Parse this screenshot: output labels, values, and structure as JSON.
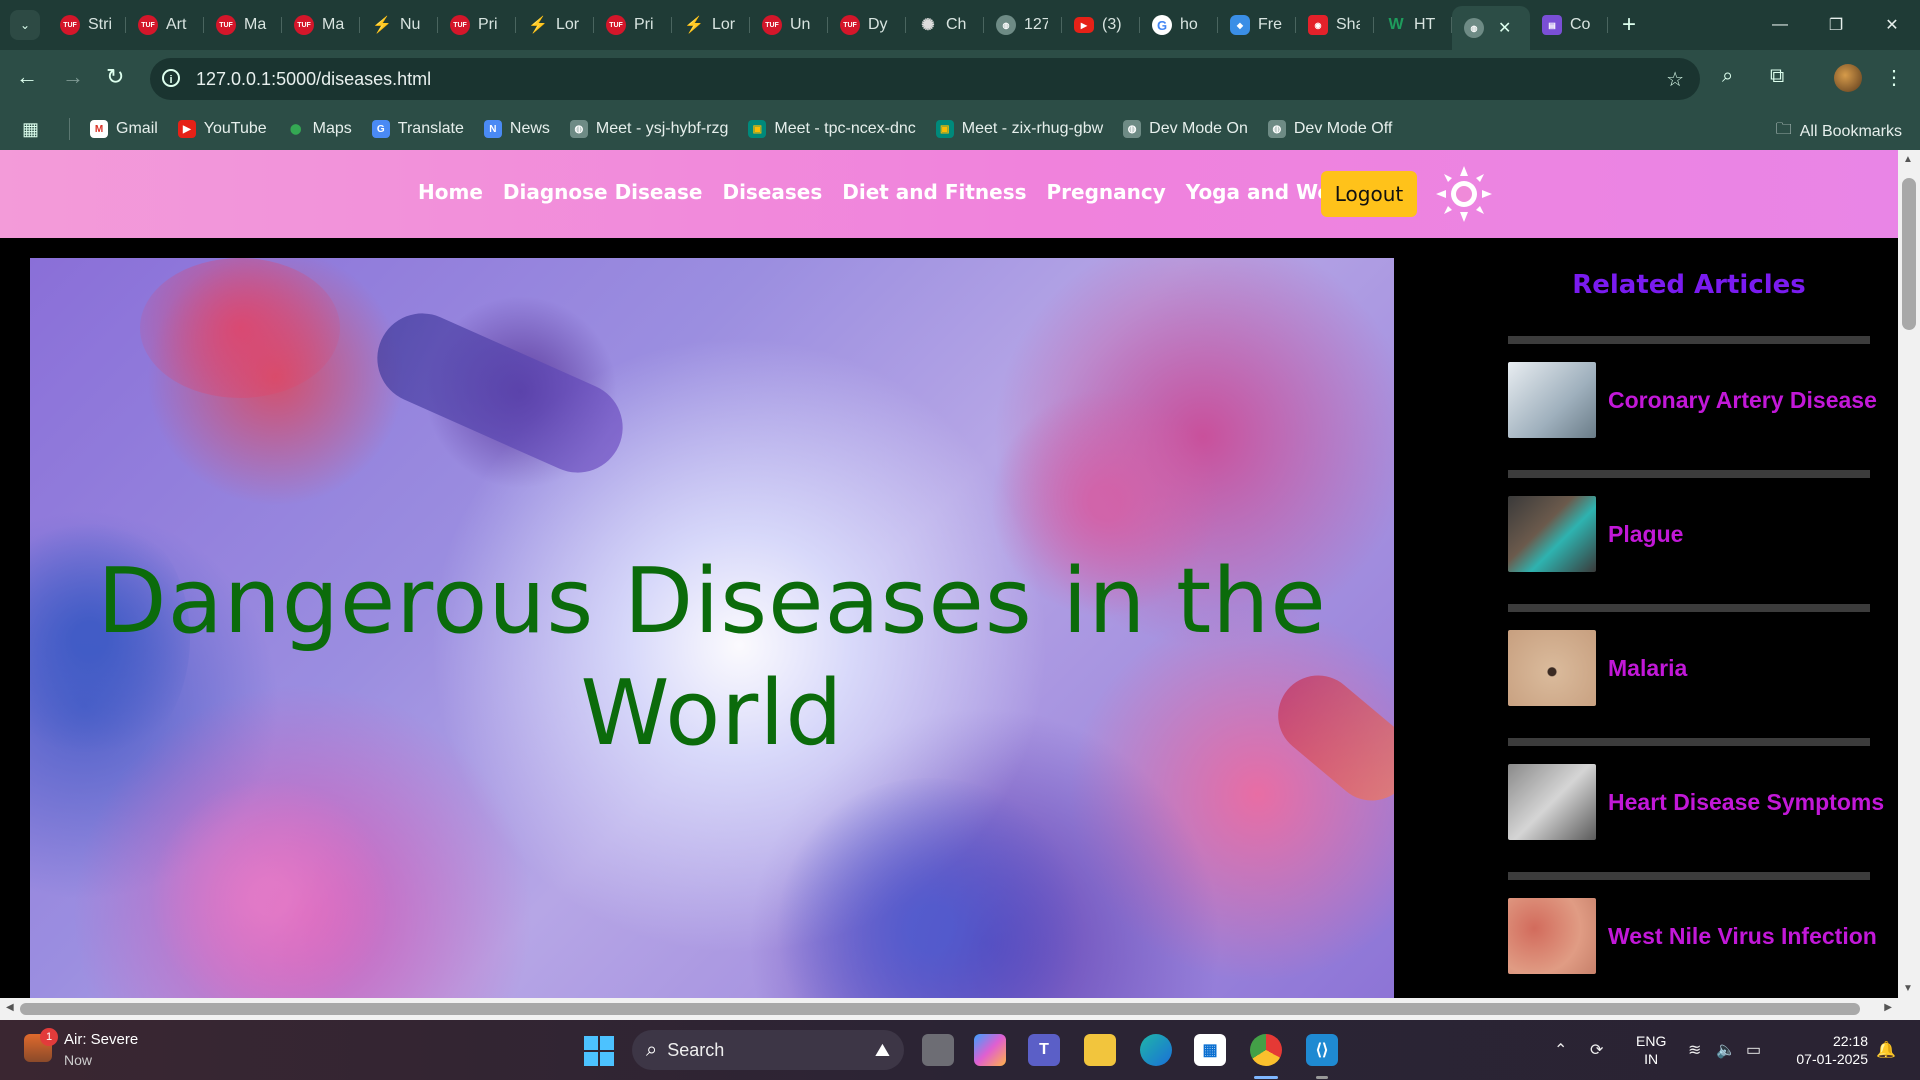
{
  "browser": {
    "tabs": [
      {
        "icon": "tuf-icon",
        "label": "Stri"
      },
      {
        "icon": "tuf-icon",
        "label": "Art"
      },
      {
        "icon": "tuf-icon",
        "label": "Ma"
      },
      {
        "icon": "tuf-icon",
        "label": "Ma"
      },
      {
        "icon": "lor-icon",
        "label": "Nu"
      },
      {
        "icon": "tuf-icon",
        "label": "Pri"
      },
      {
        "icon": "lor-icon",
        "label": "Lor"
      },
      {
        "icon": "tuf-icon",
        "label": "Pri"
      },
      {
        "icon": "lor-icon",
        "label": "Lor"
      },
      {
        "icon": "tuf-icon",
        "label": "Un"
      },
      {
        "icon": "tuf-icon",
        "label": "Dy"
      },
      {
        "icon": "chatgpt-icon",
        "label": "Ch"
      },
      {
        "icon": "globe-icon",
        "label": "127"
      },
      {
        "icon": "youtube-icon",
        "label": "(3)"
      },
      {
        "icon": "google-icon",
        "label": "ho"
      },
      {
        "icon": "fre-icon",
        "label": "Fre"
      },
      {
        "icon": "sha-icon",
        "label": "Sha"
      },
      {
        "icon": "w-icon",
        "label": "HT"
      },
      {
        "icon": "globe-icon",
        "label": "",
        "active": true
      },
      {
        "icon": "co-icon",
        "label": "Co"
      }
    ],
    "url": "127.0.0.1:5000/diseases.html",
    "bookmarks": [
      {
        "icon": "gmail-icon",
        "label": "Gmail"
      },
      {
        "icon": "youtube-icon",
        "label": "YouTube"
      },
      {
        "icon": "maps-icon",
        "label": "Maps"
      },
      {
        "icon": "translate-icon",
        "label": "Translate"
      },
      {
        "icon": "news-icon",
        "label": "News"
      },
      {
        "icon": "globe-icon",
        "label": "Meet - ysj-hybf-rzg"
      },
      {
        "icon": "meet-icon",
        "label": "Meet - tpc-ncex-dnc"
      },
      {
        "icon": "meet-icon",
        "label": "Meet - zix-rhug-gbw"
      },
      {
        "icon": "globe-icon",
        "label": "Dev Mode On"
      },
      {
        "icon": "globe-icon",
        "label": "Dev Mode Off"
      }
    ],
    "all_bookmarks": "All Bookmarks"
  },
  "site": {
    "nav": [
      "Home",
      "Diagnose Disease",
      "Diseases",
      "Diet and Fitness",
      "Pregnancy",
      "Yoga and Workout"
    ],
    "logout": "Logout",
    "hero_title": "Dangerous Diseases in the World",
    "sidebar_title": "Related Articles",
    "articles": [
      {
        "title": "Coronary Artery Disease",
        "thumb": "doctor-notes"
      },
      {
        "title": "Plague",
        "thumb": "masked-man"
      },
      {
        "title": "Malaria",
        "thumb": "mosquito-on-skin"
      },
      {
        "title": "Heart Disease Symptoms",
        "thumb": "hand-on-chest"
      },
      {
        "title": "West Nile Virus Infection",
        "thumb": "skin-rash"
      }
    ],
    "colors": {
      "nav_gradient": "#f082dc",
      "logout_bg": "#ffc21a",
      "hero_text": "#0b6b0b",
      "sidebar_title": "#7a1bf0",
      "article_title": "#c218d8"
    }
  },
  "taskbar": {
    "weather_title": "Air: Severe",
    "weather_sub": "Now",
    "weather_badge": "1",
    "search": "Search",
    "lang_1": "ENG",
    "lang_2": "IN",
    "time": "22:18",
    "date": "07-01-2025"
  }
}
